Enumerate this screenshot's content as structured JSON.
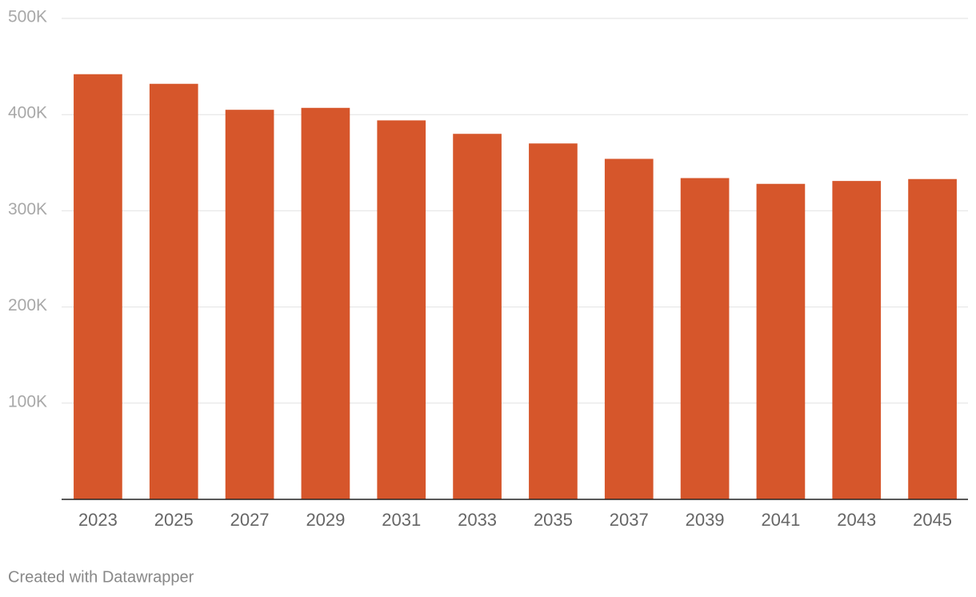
{
  "chart_data": {
    "type": "bar",
    "categories": [
      "2023",
      "2025",
      "2027",
      "2029",
      "2031",
      "2033",
      "2035",
      "2037",
      "2039",
      "2041",
      "2043",
      "2045"
    ],
    "values": [
      442000,
      432000,
      405000,
      407000,
      394000,
      380000,
      370000,
      354000,
      334000,
      328000,
      331000,
      333000
    ],
    "color": "#d6562b",
    "ylim": [
      0,
      500000
    ],
    "yticks": [
      {
        "value": 100000,
        "label": "100K"
      },
      {
        "value": 200000,
        "label": "200K"
      },
      {
        "value": 300000,
        "label": "300K"
      },
      {
        "value": 400000,
        "label": "400K"
      },
      {
        "value": 500000,
        "label": "500K"
      }
    ],
    "grid": true,
    "footer": "Created with Datawrapper"
  }
}
